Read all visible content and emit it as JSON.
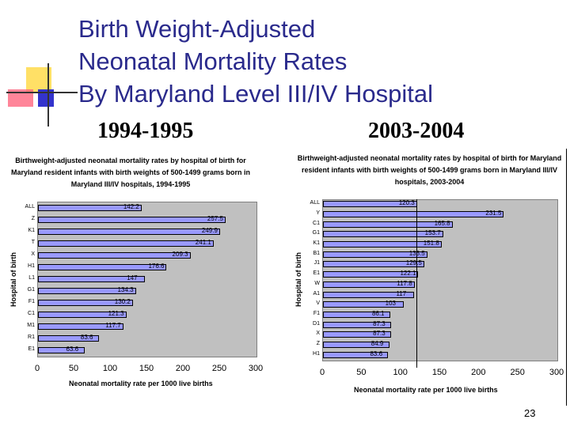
{
  "slide": {
    "title_lines": [
      "Birth Weight-Adjusted",
      "Neonatal Mortality Rates",
      "By Maryland Level III/IV Hospital"
    ],
    "page_number": "23"
  },
  "chart_data": [
    {
      "type": "bar",
      "period": "1994-1995",
      "title": "Birthweight-adjusted neonatal mortality rates by hospital of birth for Maryland resident infants with birth weights of 500-1499 grams born in Maryland III/IV hospitals, 1994-1995",
      "xlabel": "Neonatal mortality rate per 1000 live births",
      "ylabel": "Hospital of birth",
      "xlim": [
        0,
        300
      ],
      "xticks": [
        "0",
        "50",
        "100",
        "150",
        "200",
        "250",
        "300"
      ],
      "orientation": "horizontal",
      "color": "#9999ff",
      "categories": [
        "ALL",
        "Z",
        "K1",
        "T",
        "X",
        "H1",
        "L1",
        "G1",
        "F1",
        "C1",
        "M1",
        "R1",
        "E1"
      ],
      "values": [
        142.2,
        257.5,
        249.9,
        241.1,
        209.3,
        176.6,
        147,
        134.3,
        130.2,
        121.3,
        117.7,
        83.6,
        63.6
      ]
    },
    {
      "type": "bar",
      "period": "2003-2004",
      "title": "Birthweight-adjusted neonatal mortality rates by hospital of birth for Maryland resident infants with birth weights of 500-1499 grams born in Maryland III/IV hospitals, 2003-2004",
      "xlabel": "Neonatal mortality rate per 1000 live births",
      "ylabel": "Hospital of birth",
      "xlim": [
        0,
        300
      ],
      "xticks": [
        "0",
        "50",
        "100",
        "150",
        "200",
        "250",
        "300"
      ],
      "orientation": "horizontal",
      "color": "#9999ff",
      "reference_line": 120.3,
      "categories": [
        "ALL",
        "Y",
        "C1",
        "G1",
        "K1",
        "B1",
        "J1",
        "E1",
        "W",
        "A1",
        "V",
        "F1",
        "D1",
        "X",
        "Z",
        "H1"
      ],
      "values": [
        120.3,
        231.5,
        165.8,
        153.7,
        151.8,
        133.5,
        129.5,
        122.1,
        117.8,
        117,
        103,
        86.1,
        87.3,
        87.3,
        84.9,
        83.6
      ]
    }
  ]
}
